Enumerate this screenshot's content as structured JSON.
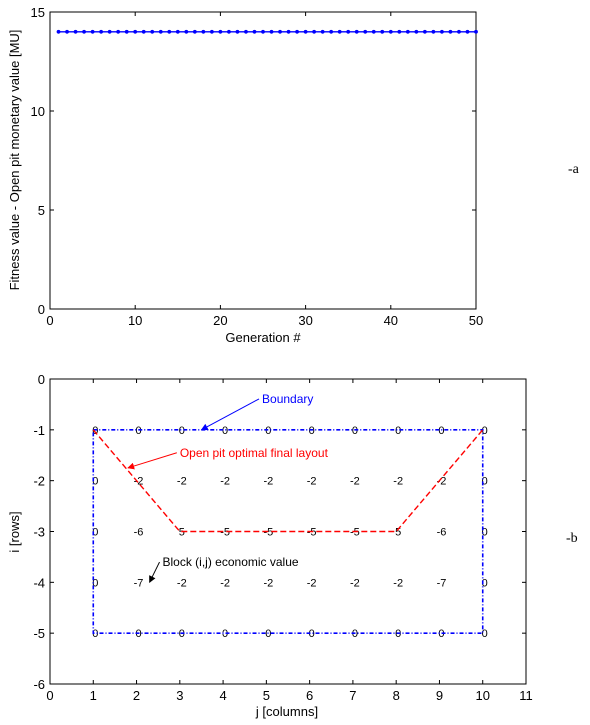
{
  "chart_data": [
    {
      "type": "line",
      "xlabel": "Generation #",
      "ylabel": "Fitness value - Open pit monetary value [MU]",
      "xlim": [
        0,
        50
      ],
      "ylim": [
        0,
        15
      ],
      "xticks": [
        "0",
        "10",
        "20",
        "30",
        "40",
        "50"
      ],
      "yticks": [
        "0",
        "5",
        "10",
        "15"
      ],
      "grid": false,
      "series": [
        {
          "color": "#0000ff",
          "marker": "dot",
          "x": [
            1,
            2,
            3,
            4,
            5,
            6,
            7,
            8,
            9,
            10,
            11,
            12,
            13,
            14,
            15,
            16,
            17,
            18,
            19,
            20,
            21,
            22,
            23,
            24,
            25,
            26,
            27,
            28,
            29,
            30,
            31,
            32,
            33,
            34,
            35,
            36,
            37,
            38,
            39,
            40,
            41,
            42,
            43,
            44,
            45,
            46,
            47,
            48,
            49,
            50
          ],
          "values": [
            14,
            14,
            14,
            14,
            14,
            14,
            14,
            14,
            14,
            14,
            14,
            14,
            14,
            14,
            14,
            14,
            14,
            14,
            14,
            14,
            14,
            14,
            14,
            14,
            14,
            14,
            14,
            14,
            14,
            14,
            14,
            14,
            14,
            14,
            14,
            14,
            14,
            14,
            14,
            14,
            14,
            14,
            14,
            14,
            14,
            14,
            14,
            14,
            14,
            14
          ]
        }
      ],
      "panel_label": "-a"
    },
    {
      "type": "line",
      "xlabel": "j [columns]",
      "ylabel": "i [rows]",
      "xlim": [
        0,
        11
      ],
      "ylim": [
        -6,
        0
      ],
      "xticks": [
        "0",
        "1",
        "2",
        "3",
        "4",
        "5",
        "6",
        "7",
        "8",
        "9",
        "10",
        "11"
      ],
      "yticks": [
        "0",
        "-1",
        "-2",
        "-3",
        "-4",
        "-5",
        "-6"
      ],
      "grid": false,
      "boundary": {
        "color": "#0000ff",
        "x": [
          1,
          10,
          10,
          1,
          1
        ],
        "y": [
          -1,
          -1,
          -5,
          -5,
          -1
        ]
      },
      "pit_layout": {
        "color": "#ff0000",
        "x": [
          1,
          3,
          8,
          10
        ],
        "y": [
          -1,
          -3,
          -3,
          -1
        ]
      },
      "block_values": {
        "columns": [
          1,
          2,
          3,
          4,
          5,
          6,
          7,
          8,
          9,
          10
        ],
        "rows": [
          {
            "i": -1,
            "values": [
              "0",
              "0",
              "0",
              "0",
              "0",
              "0",
              "0",
              "0",
              "0",
              "0"
            ]
          },
          {
            "i": -2,
            "values": [
              "0",
              "-2",
              "-2",
              "-2",
              "-2",
              "-2",
              "-2",
              "-2",
              "-2",
              "0"
            ]
          },
          {
            "i": -3,
            "values": [
              "0",
              "-6",
              "5",
              "-5",
              "-5",
              "-5",
              "-5",
              "5",
              "-6",
              "0"
            ]
          },
          {
            "i": -4,
            "values": [
              "0",
              "-7",
              "-2",
              "-2",
              "-2",
              "-2",
              "-2",
              "-2",
              "-7",
              "0"
            ]
          },
          {
            "i": -5,
            "values": [
              "0",
              "0",
              "0",
              "0",
              "0",
              "0",
              "0",
              "0",
              "0",
              "0"
            ]
          }
        ]
      },
      "annotations": [
        {
          "text": "Boundary",
          "color": "#0000ff",
          "text_x": 4.9,
          "text_y": -0.47,
          "arrow_to": [
            3.5,
            -1
          ]
        },
        {
          "text": "Open pit optimal final layout",
          "color": "#ff0000",
          "text_x": 3.0,
          "text_y": -1.53,
          "arrow_to": [
            1.8,
            -1.75
          ]
        },
        {
          "text": "Block (i,j) economic value",
          "color": "#000000",
          "text_x": 2.6,
          "text_y": -3.68,
          "arrow_to": [
            2.3,
            -4.0
          ]
        }
      ],
      "panel_label": "-b"
    }
  ]
}
